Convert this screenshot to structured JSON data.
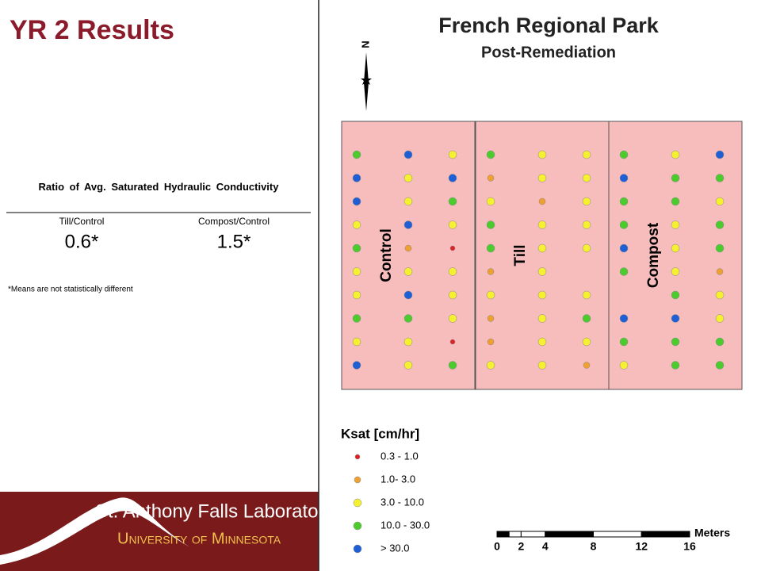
{
  "slide": {
    "title": "YR 2 Results"
  },
  "table": {
    "caption": "Ratio of Avg. Saturated Hydraulic Conductivity",
    "headers": [
      "Till/Control",
      "Compost/Control"
    ],
    "values": [
      "0.6*",
      "1.5*"
    ],
    "footnote": "*Means are not statistically different"
  },
  "logo": {
    "line1": "St. Anthony Falls Laboratory",
    "line2": "University of Minnesota"
  },
  "map": {
    "title": "French Regional Park",
    "subtitle": "Post-Remediation",
    "north": "N",
    "plots": [
      {
        "label": "Control",
        "columns": [
          [
            3,
            4,
            4,
            2,
            3,
            2,
            2,
            3,
            2,
            4
          ],
          [
            4,
            2,
            2,
            4,
            1,
            2,
            4,
            3,
            2,
            2
          ],
          [
            2,
            4,
            3,
            2,
            0,
            2,
            2,
            2,
            0,
            3
          ]
        ]
      },
      {
        "label": "Till",
        "columns": [
          [
            3,
            1,
            2,
            3,
            3,
            1,
            2,
            1,
            1,
            2
          ],
          [
            2,
            2,
            1,
            2,
            2,
            2,
            2,
            2,
            2,
            2
          ],
          [
            2,
            2,
            2,
            2,
            2,
            null,
            2,
            3,
            2,
            1
          ]
        ]
      },
      {
        "label": "Compost",
        "columns": [
          [
            3,
            4,
            3,
            3,
            4,
            3,
            null,
            4,
            3,
            2
          ],
          [
            2,
            3,
            3,
            2,
            2,
            2,
            3,
            4,
            3,
            3
          ],
          [
            4,
            3,
            2,
            3,
            3,
            1,
            2,
            2,
            3,
            3
          ]
        ]
      }
    ],
    "legend": {
      "title": "Ksat [cm/hr]",
      "items": [
        {
          "label": "0.3 - 1.0",
          "color": "#e02020"
        },
        {
          "label": "1.0- 3.0",
          "color": "#f0a030"
        },
        {
          "label": "3.0 - 10.0",
          "color": "#f5f030"
        },
        {
          "label": "10.0 - 30.0",
          "color": "#4ccc2c"
        },
        {
          "label": "> 30.0",
          "color": "#1f5fd6"
        }
      ]
    },
    "scale": {
      "ticks": [
        0,
        2,
        4,
        8,
        12,
        16
      ],
      "unit": "Meters"
    }
  }
}
